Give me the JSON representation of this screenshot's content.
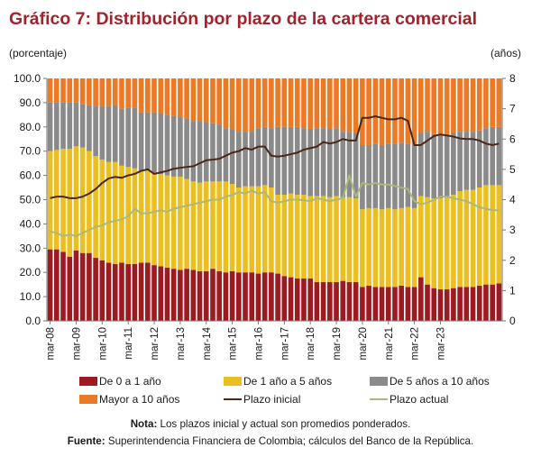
{
  "chart_data": {
    "type": "bar",
    "title": "Gráfico 7: Distribución por plazo de la cartera comercial",
    "ylabel_left": "(porcentaje)",
    "ylabel_right": "(años)",
    "ylim_left": [
      0,
      100
    ],
    "ylim_right": [
      0,
      8
    ],
    "yticks_left": [
      "0.0",
      "10.0",
      "20.0",
      "30.0",
      "40.0",
      "50.0",
      "60.0",
      "70.0",
      "80.0",
      "90.0",
      "100.0"
    ],
    "yticks_right": [
      "0",
      "1",
      "2",
      "3",
      "4",
      "5",
      "6",
      "7",
      "8"
    ],
    "xtick_labels": [
      "mar-08",
      "mar-09",
      "mar-10",
      "mar-11",
      "mar-12",
      "mar-13",
      "mar-14",
      "mar-15",
      "mar-16",
      "mar-17",
      "mar-18",
      "mar-19",
      "mar-20",
      "mar-21",
      "mar-22",
      "mar-23"
    ],
    "stacked": true,
    "series": [
      {
        "name": "De 0 a 1 año",
        "type": "bar",
        "axis": "left",
        "color": "#9b1b21",
        "values": [
          29.5,
          29.5,
          28.5,
          26.5,
          29,
          28,
          28,
          26,
          25,
          24,
          23.5,
          24,
          23.5,
          23.5,
          24,
          24,
          23,
          22.5,
          22,
          21.5,
          21,
          21.5,
          21,
          20.5,
          20.5,
          21.5,
          20.5,
          20,
          20.5,
          20,
          20,
          20,
          19.5,
          20,
          20,
          19.5,
          18.5,
          18,
          17.5,
          17.5,
          17.5,
          16,
          16,
          16,
          16,
          16.5,
          16,
          16,
          14,
          14.5,
          14,
          14,
          14,
          14,
          14.5,
          14,
          14,
          18,
          15,
          13.5,
          13,
          13,
          13.5,
          14,
          14,
          14,
          14.5,
          15,
          15,
          15.5
        ]
      },
      {
        "name": "De 1 año a 5 años",
        "type": "bar",
        "axis": "left",
        "color": "#ecbf20",
        "values": [
          40.5,
          41,
          42.5,
          44.5,
          43,
          43.5,
          42,
          42,
          41.5,
          41.5,
          42,
          40,
          40,
          39.5,
          38,
          38,
          38,
          38,
          38,
          38,
          38.5,
          37,
          36.5,
          36.5,
          37,
          36,
          37,
          37.5,
          36,
          35,
          35.5,
          35.5,
          36,
          36,
          35,
          32.5,
          33.5,
          34.5,
          34.5,
          34.5,
          34,
          35.5,
          35.5,
          35,
          35.5,
          34.5,
          35,
          34.5,
          32,
          32,
          32.5,
          32,
          32.5,
          32,
          32,
          33,
          32.5,
          33.5,
          36,
          37,
          37.5,
          38,
          38.5,
          39.5,
          40,
          40,
          40.5,
          41,
          41,
          40.5
        ]
      },
      {
        "name": "De 5 años a 10 años",
        "type": "bar",
        "axis": "left",
        "color": "#8a8a8a",
        "values": [
          20,
          19.5,
          19,
          19,
          18,
          18,
          19,
          20.5,
          22,
          23,
          23.5,
          23.5,
          24.5,
          25,
          24,
          24,
          25,
          25,
          25,
          25,
          24.5,
          25,
          25,
          25.5,
          24.5,
          24,
          23.5,
          22,
          22.5,
          23,
          22.5,
          22.5,
          24,
          24,
          24.5,
          28,
          28,
          27.5,
          28,
          27.5,
          27.5,
          28,
          28,
          28,
          28,
          27,
          27,
          27,
          26.5,
          26,
          26.5,
          26.5,
          26.5,
          27,
          27,
          26,
          26,
          26,
          27,
          26.5,
          26.5,
          26,
          25.5,
          24.5,
          24,
          24,
          23.5,
          23.5,
          24,
          24
        ]
      },
      {
        "name": "Mayor a 10 años",
        "type": "bar",
        "axis": "left",
        "color": "#eb7a25",
        "values": [
          10,
          10,
          10,
          10,
          10,
          10.5,
          11,
          11.5,
          11.5,
          11.5,
          11,
          12.5,
          12,
          12,
          14,
          14,
          14,
          14.5,
          15,
          15.5,
          16,
          16.5,
          17.5,
          17.5,
          18,
          18.5,
          19,
          20.5,
          21,
          22,
          22,
          22,
          20.5,
          20,
          20.5,
          20,
          20,
          20,
          20,
          20.5,
          21,
          20.5,
          20.5,
          21,
          20.5,
          22,
          22,
          22.5,
          27.5,
          27.5,
          27,
          27.5,
          27,
          27,
          26.5,
          27,
          27.5,
          22.5,
          22,
          23,
          23,
          23,
          22.5,
          22,
          22,
          22,
          21.5,
          20.5,
          20,
          20
        ]
      },
      {
        "name": "Plazo inicial",
        "type": "line",
        "axis": "right",
        "color": "#4a2717",
        "values": [
          4.05,
          4.1,
          4.1,
          4.05,
          4.05,
          4.1,
          4.2,
          4.35,
          4.55,
          4.7,
          4.75,
          4.72,
          4.8,
          4.85,
          4.95,
          5.0,
          4.85,
          4.9,
          4.95,
          5.02,
          5.05,
          5.08,
          5.1,
          5.2,
          5.3,
          5.32,
          5.35,
          5.45,
          5.55,
          5.6,
          5.7,
          5.65,
          5.75,
          5.75,
          5.45,
          5.42,
          5.45,
          5.5,
          5.55,
          5.65,
          5.7,
          5.75,
          5.9,
          5.85,
          5.9,
          6.0,
          5.95,
          5.95,
          6.7,
          6.7,
          6.75,
          6.7,
          6.65,
          6.65,
          6.7,
          6.6,
          5.8,
          5.8,
          5.95,
          6.1,
          6.15,
          6.12,
          6.08,
          6.02,
          6.0,
          6.0,
          5.95,
          5.85,
          5.8,
          5.85
        ]
      },
      {
        "name": "Plazo actual",
        "type": "line",
        "axis": "right",
        "color": "#a9b87c",
        "values": [
          2.95,
          2.9,
          2.8,
          2.85,
          2.8,
          2.9,
          3.0,
          3.1,
          3.15,
          3.25,
          3.3,
          3.35,
          3.45,
          3.7,
          3.55,
          3.55,
          3.6,
          3.65,
          3.6,
          3.7,
          3.75,
          3.8,
          3.85,
          3.9,
          3.95,
          4.0,
          4.0,
          4.1,
          4.15,
          4.25,
          4.2,
          4.3,
          4.2,
          4.25,
          3.95,
          3.9,
          3.95,
          4.0,
          4.0,
          3.98,
          3.95,
          4.05,
          4.0,
          3.95,
          4.0,
          4.05,
          4.8,
          4.1,
          4.55,
          4.5,
          4.55,
          4.5,
          4.5,
          4.45,
          4.4,
          4.35,
          3.95,
          3.85,
          3.9,
          4.0,
          4.1,
          4.1,
          4.05,
          4.0,
          3.95,
          3.85,
          3.75,
          3.7,
          3.65,
          3.65
        ]
      }
    ],
    "legend": [
      {
        "label": "De 0 a 1 año",
        "kind": "box",
        "color": "#9b1b21"
      },
      {
        "label": "De 1 año a 5 años",
        "kind": "box",
        "color": "#ecbf20"
      },
      {
        "label": "De 5 años a 10 años",
        "kind": "box",
        "color": "#8a8a8a"
      },
      {
        "label": "Mayor a 10 años",
        "kind": "box",
        "color": "#eb7a25"
      },
      {
        "label": "Plazo inicial",
        "kind": "line",
        "color": "#4a2717"
      },
      {
        "label": "Plazo actual",
        "kind": "line",
        "color": "#a9b87c"
      }
    ],
    "legend_position": "bottom"
  },
  "notes": {
    "note_label": "Nota:",
    "note_text": " Los plazos inicial y actual son promedios ponderados.",
    "source_label": "Fuente:",
    "source_text": " Superintendencia Financiera de Colombia; cálculos del Banco de la República."
  }
}
